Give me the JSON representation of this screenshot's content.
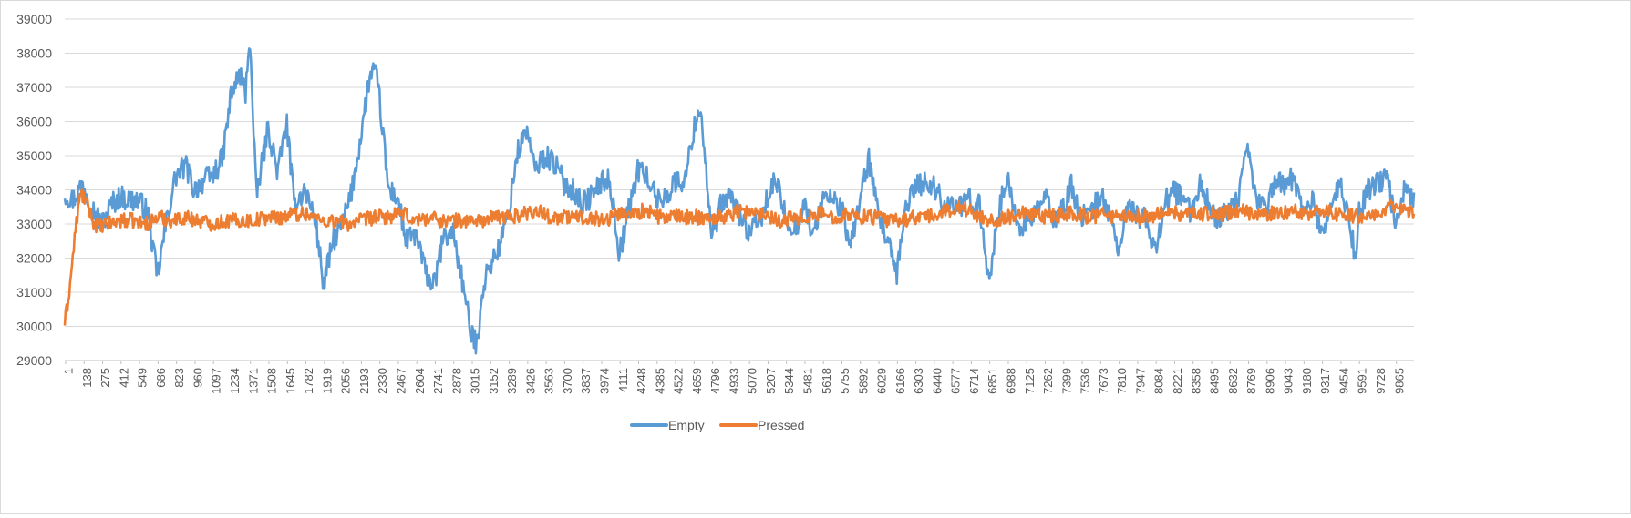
{
  "chart_data": {
    "type": "line",
    "title": "",
    "xlabel": "",
    "ylabel": "",
    "ylim": [
      29000,
      39000
    ],
    "y_ticks": [
      29000,
      30000,
      31000,
      32000,
      33000,
      34000,
      35000,
      36000,
      37000,
      38000,
      39000
    ],
    "x_tick_labels": [
      "1",
      "138",
      "275",
      "412",
      "549",
      "686",
      "823",
      "960",
      "1097",
      "1234",
      "1371",
      "1508",
      "1645",
      "1782",
      "1919",
      "2056",
      "2193",
      "2330",
      "2467",
      "2604",
      "2741",
      "2878",
      "3015",
      "3152",
      "3289",
      "3426",
      "3563",
      "3700",
      "3837",
      "3974",
      "4111",
      "4248",
      "4385",
      "4522",
      "4659",
      "4796",
      "4933",
      "5070",
      "5207",
      "5344",
      "5481",
      "5618",
      "5755",
      "5892",
      "6029",
      "6166",
      "6303",
      "6440",
      "6577",
      "6714",
      "6851",
      "6988",
      "7125",
      "7262",
      "7399",
      "7536",
      "7673",
      "7810",
      "7947",
      "8084",
      "8221",
      "8358",
      "8495",
      "8632",
      "8769",
      "8906",
      "9043",
      "9180",
      "9317",
      "9454",
      "9591",
      "9728",
      "9865"
    ],
    "xlim": [
      1,
      10000
    ],
    "grid": true,
    "legend_position": "bottom",
    "series": [
      {
        "name": "Empty",
        "color": "#5b9bd5",
        "noise": 350,
        "x": [
          1,
          60,
          138,
          200,
          275,
          350,
          412,
          480,
          549,
          620,
          686,
          760,
          823,
          900,
          960,
          1040,
          1097,
          1170,
          1234,
          1300,
          1340,
          1371,
          1420,
          1508,
          1580,
          1645,
          1700,
          1782,
          1860,
          1919,
          1990,
          2056,
          2120,
          2193,
          2260,
          2300,
          2330,
          2400,
          2467,
          2530,
          2604,
          2680,
          2741,
          2800,
          2878,
          2940,
          3015,
          3060,
          3090,
          3152,
          3220,
          3289,
          3350,
          3426,
          3480,
          3563,
          3630,
          3700,
          3770,
          3837,
          3900,
          3974,
          4040,
          4111,
          4180,
          4248,
          4320,
          4385,
          4450,
          4522,
          4600,
          4659,
          4700,
          4730,
          4796,
          4860,
          4933,
          5000,
          5070,
          5140,
          5207,
          5270,
          5344,
          5410,
          5481,
          5550,
          5618,
          5690,
          5755,
          5820,
          5892,
          5960,
          6029,
          6100,
          6166,
          6230,
          6303,
          6370,
          6440,
          6510,
          6577,
          6640,
          6714,
          6780,
          6851,
          6920,
          6988,
          7060,
          7125,
          7190,
          7262,
          7330,
          7399,
          7460,
          7536,
          7600,
          7673,
          7740,
          7810,
          7880,
          7947,
          8010,
          8084,
          8150,
          8221,
          8290,
          8358,
          8420,
          8495,
          8560,
          8632,
          8700,
          8769,
          8830,
          8906,
          8970,
          9043,
          9110,
          9180,
          9250,
          9317,
          9380,
          9454,
          9520,
          9570,
          9591,
          9660,
          9728,
          9800,
          9865,
          9930,
          10000
        ],
        "y": [
          33900,
          33700,
          34200,
          33500,
          33000,
          33600,
          33800,
          33700,
          33700,
          33300,
          31400,
          33200,
          34400,
          34700,
          34000,
          34300,
          34400,
          34900,
          36800,
          37400,
          36800,
          38600,
          33800,
          35800,
          34500,
          36000,
          33600,
          34000,
          33100,
          31200,
          32500,
          33000,
          33800,
          35500,
          37300,
          37500,
          36800,
          34000,
          33800,
          32500,
          32700,
          31500,
          31200,
          32500,
          32800,
          31500,
          29700,
          29500,
          31000,
          31800,
          32300,
          33300,
          35000,
          35800,
          34600,
          35000,
          34800,
          34200,
          34000,
          33600,
          33800,
          34200,
          34300,
          32100,
          33400,
          34600,
          34400,
          33700,
          33800,
          34200,
          34300,
          35700,
          36400,
          35800,
          32500,
          33500,
          33800,
          33300,
          32700,
          33000,
          33700,
          34300,
          33200,
          32800,
          33600,
          32600,
          33800,
          33700,
          33500,
          32300,
          33700,
          34900,
          33200,
          32500,
          31400,
          33500,
          34100,
          34200,
          34100,
          33600,
          33600,
          33500,
          33700,
          33500,
          31300,
          33400,
          34300,
          33000,
          33000,
          33300,
          33800,
          33200,
          33400,
          34100,
          33200,
          33300,
          33800,
          33400,
          32200,
          33500,
          33300,
          33100,
          32200,
          33600,
          34000,
          33700,
          33300,
          34300,
          33300,
          33200,
          33300,
          33800,
          35200,
          33700,
          33500,
          34300,
          34100,
          34400,
          33400,
          33700,
          32700,
          33500,
          34100,
          33200,
          31800,
          33300,
          34000,
          34200,
          34300,
          33100,
          34000,
          33800
        ]
      },
      {
        "name": "Pressed",
        "color": "#ed7d31",
        "noise": 220,
        "x": [
          1,
          20,
          40,
          60,
          80,
          100,
          120,
          138,
          175,
          220,
          275,
          330,
          412,
          500,
          600,
          700,
          800,
          900,
          1000,
          1100,
          1200,
          1300,
          1400,
          1500,
          1600,
          1700,
          1800,
          1900,
          2000,
          2100,
          2200,
          2300,
          2400,
          2500,
          2600,
          2700,
          2800,
          2900,
          3000,
          3100,
          3200,
          3300,
          3400,
          3500,
          3600,
          3700,
          3800,
          3900,
          4000,
          4100,
          4200,
          4300,
          4400,
          4500,
          4600,
          4700,
          4800,
          4900,
          5000,
          5100,
          5200,
          5300,
          5400,
          5500,
          5600,
          5700,
          5800,
          5900,
          6000,
          6100,
          6200,
          6300,
          6400,
          6500,
          6600,
          6700,
          6800,
          6900,
          7000,
          7100,
          7200,
          7300,
          7400,
          7500,
          7600,
          7700,
          7800,
          7900,
          8000,
          8100,
          8200,
          8300,
          8400,
          8500,
          8600,
          8700,
          8800,
          8900,
          9000,
          9100,
          9200,
          9300,
          9400,
          9500,
          9600,
          9700,
          9800,
          9900,
          10000
        ],
        "y": [
          30100,
          30600,
          31200,
          32000,
          32800,
          33400,
          33900,
          33800,
          33500,
          33000,
          32900,
          33000,
          33100,
          33100,
          33000,
          33200,
          33100,
          33200,
          33100,
          33000,
          33100,
          33100,
          33100,
          33200,
          33200,
          33300,
          33300,
          33100,
          33100,
          33000,
          33100,
          33200,
          33200,
          33300,
          33100,
          33200,
          33100,
          33100,
          33100,
          33100,
          33200,
          33200,
          33300,
          33400,
          33200,
          33200,
          33200,
          33200,
          33100,
          33300,
          33300,
          33400,
          33200,
          33200,
          33200,
          33200,
          33200,
          33200,
          33400,
          33300,
          33300,
          33100,
          33200,
          33200,
          33300,
          33200,
          33300,
          33200,
          33200,
          33100,
          33100,
          33200,
          33200,
          33300,
          33500,
          33400,
          33200,
          33100,
          33200,
          33300,
          33200,
          33200,
          33300,
          33300,
          33200,
          33300,
          33200,
          33200,
          33200,
          33300,
          33300,
          33300,
          33300,
          33300,
          33300,
          33400,
          33300,
          33300,
          33300,
          33400,
          33300,
          33400,
          33300,
          33300,
          33200,
          33300,
          33500,
          33400,
          33300
        ]
      }
    ]
  }
}
